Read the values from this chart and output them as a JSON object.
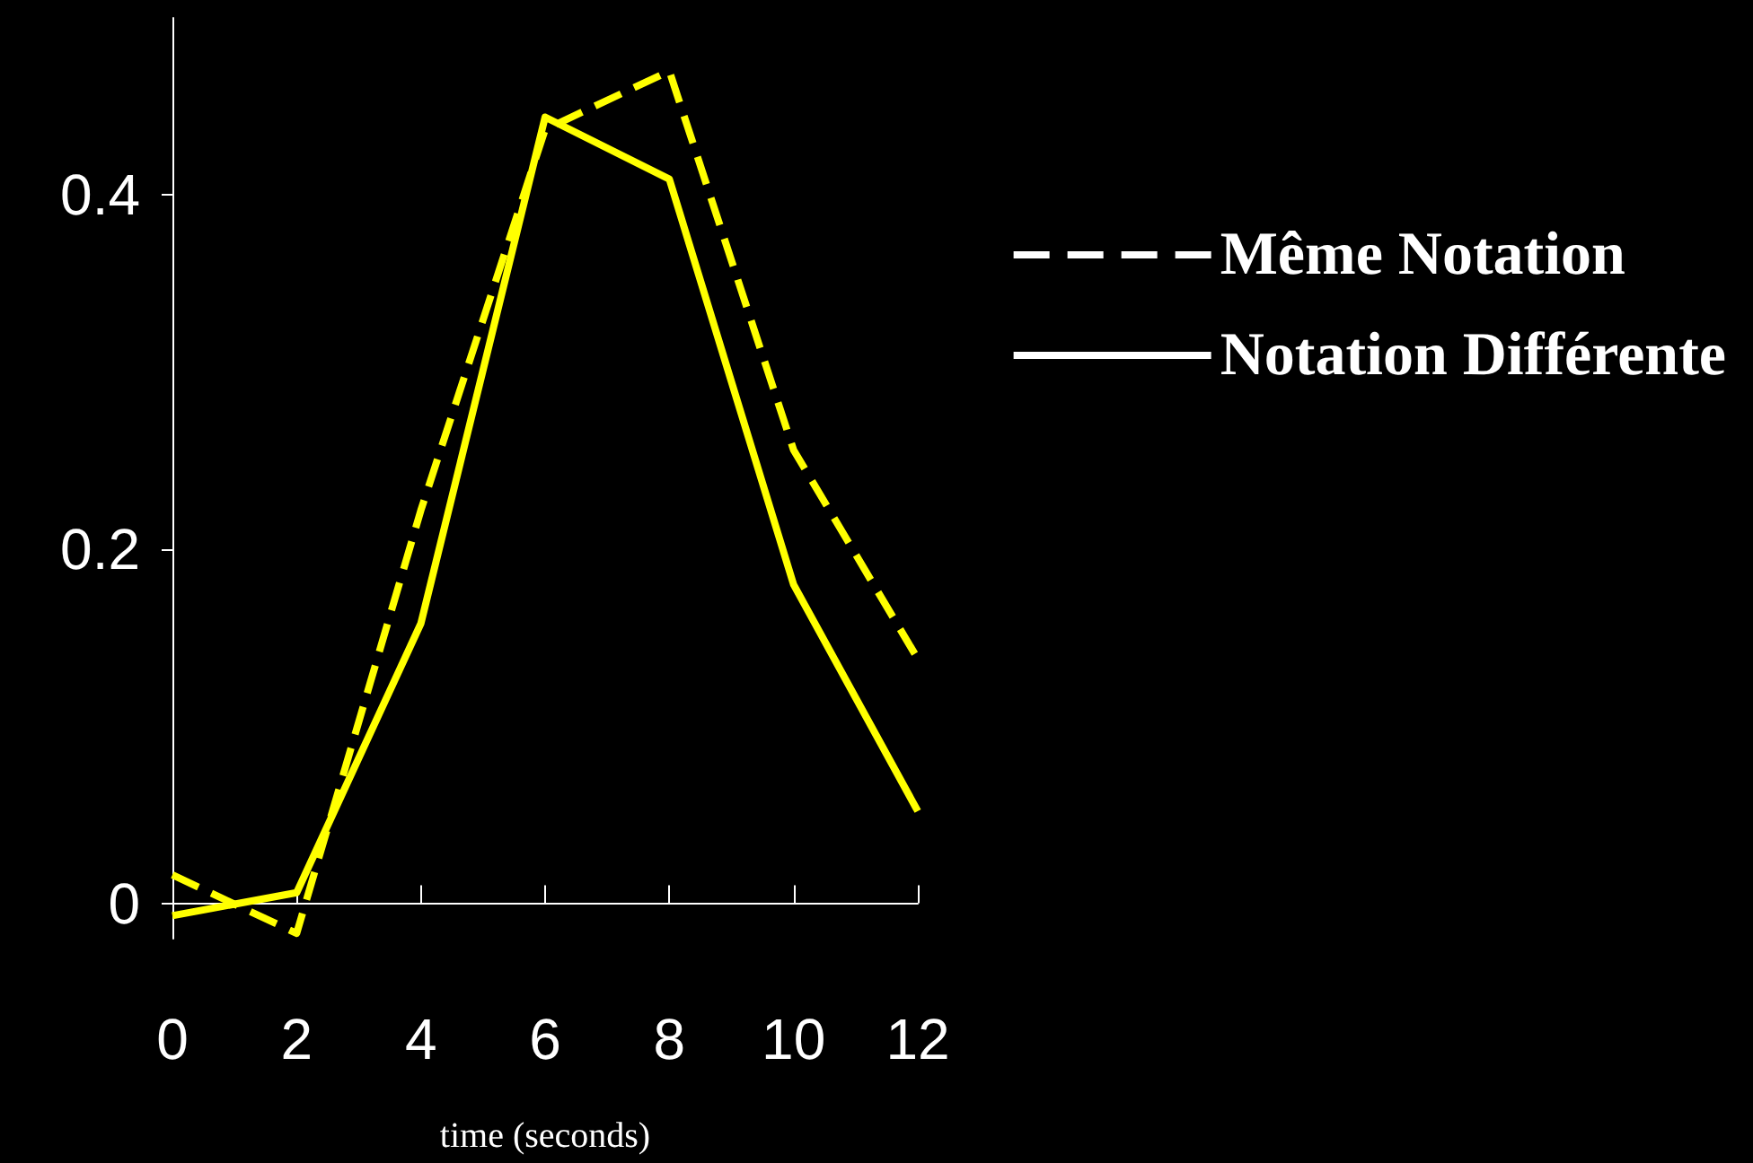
{
  "chart_data": {
    "type": "line",
    "xlabel": "time (seconds)",
    "x": [
      0,
      2,
      4,
      6,
      8,
      10,
      12
    ],
    "series": [
      {
        "name": "Même Notation",
        "color": "#ffff00",
        "line_style": "dashed",
        "values": [
          0.016,
          -0.017,
          0.222,
          0.437,
          0.47,
          0.256,
          0.138
        ]
      },
      {
        "name": "Notation Différente",
        "color": "#ffff00",
        "line_style": "solid",
        "values": [
          -0.007,
          0.006,
          0.158,
          0.444,
          0.409,
          0.18,
          0.052
        ]
      }
    ],
    "xlim": [
      0,
      12
    ],
    "xticks": [
      0,
      2,
      4,
      6,
      8,
      10,
      12
    ],
    "ylim": [
      -0.02,
      0.5
    ],
    "yticks": [
      0,
      0.2,
      0.4
    ],
    "grid": false,
    "legend": "top right",
    "marker": "none"
  }
}
